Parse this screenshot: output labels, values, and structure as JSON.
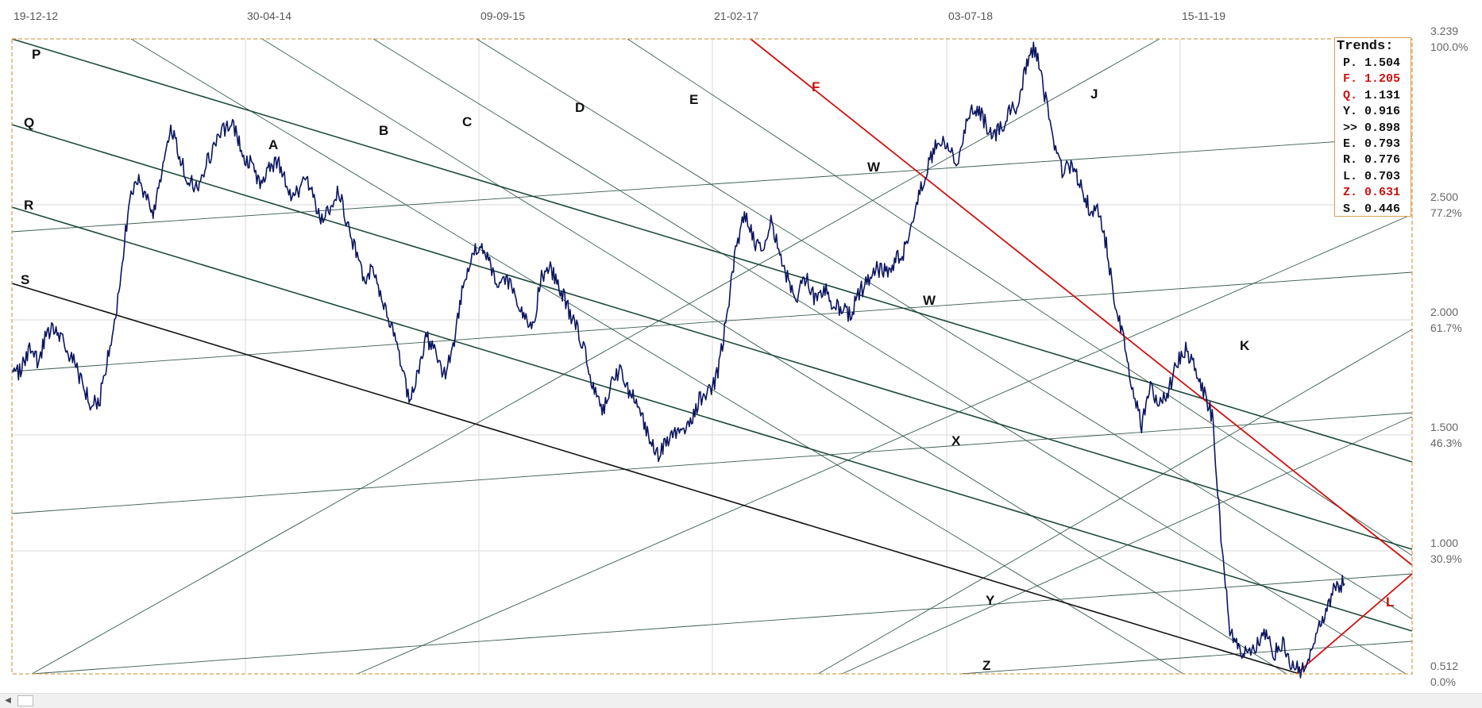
{
  "chart_data": {
    "type": "line",
    "title": "",
    "x_dates": [
      "19-12-12",
      "30-04-14",
      "09-09-15",
      "21-02-17",
      "03-07-18",
      "15-11-19"
    ],
    "price_levels": [
      {
        "price": "3.239",
        "percent": "100.0%"
      },
      {
        "price": "2.500",
        "percent": "77.2%"
      },
      {
        "price": "2.000",
        "percent": "61.7%"
      },
      {
        "price": "1.500",
        "percent": "46.3%"
      },
      {
        "price": "1.000",
        "percent": "30.9%"
      },
      {
        "price": "0.512",
        "percent": "0.0%"
      }
    ],
    "ylim": [
      0.512,
      3.239
    ],
    "grid": true,
    "price_series": {
      "color": "#0b1660",
      "values": [
        1.78,
        1.82,
        1.9,
        1.85,
        1.98,
        2.0,
        1.92,
        1.86,
        1.75,
        1.66,
        1.7,
        1.9,
        2.12,
        2.45,
        2.65,
        2.58,
        2.5,
        2.66,
        2.88,
        2.72,
        2.64,
        2.6,
        2.7,
        2.78,
        2.85,
        2.88,
        2.76,
        2.7,
        2.62,
        2.68,
        2.72,
        2.62,
        2.55,
        2.64,
        2.58,
        2.45,
        2.52,
        2.6,
        2.45,
        2.32,
        2.2,
        2.26,
        2.1,
        2.0,
        1.85,
        1.7,
        1.8,
        1.96,
        1.88,
        1.8,
        1.92,
        2.15,
        2.3,
        2.35,
        2.28,
        2.2,
        2.22,
        2.12,
        2.05,
        2.0,
        2.22,
        2.25,
        2.18,
        2.08,
        2.0,
        1.88,
        1.72,
        1.65,
        1.78,
        1.82,
        1.72,
        1.66,
        1.55,
        1.44,
        1.5,
        1.56,
        1.54,
        1.6,
        1.7,
        1.72,
        1.8,
        2.05,
        2.32,
        2.48,
        2.38,
        2.32,
        2.48,
        2.3,
        2.2,
        2.14,
        2.22,
        2.12,
        2.18,
        2.1,
        2.08,
        2.05,
        2.15,
        2.2,
        2.25,
        2.24,
        2.28,
        2.32,
        2.42,
        2.6,
        2.72,
        2.82,
        2.78,
        2.7,
        2.85,
        2.95,
        2.9,
        2.82,
        2.85,
        2.92,
        2.95,
        3.15,
        3.2,
        3.0,
        2.8,
        2.68,
        2.7,
        2.62,
        2.52,
        2.5,
        2.35,
        2.1,
        1.95,
        1.72,
        1.58,
        1.75,
        1.66,
        1.72,
        1.85,
        1.9,
        1.82,
        1.72,
        1.62,
        1.1,
        0.7,
        0.62,
        0.6,
        0.63,
        0.68,
        0.6,
        0.64,
        0.55,
        0.52,
        0.6,
        0.72,
        0.78,
        0.9,
        0.9
      ]
    },
    "trend_lines": [
      {
        "name": "P",
        "color": "#1e4a3c",
        "start": {
          "date": "19-12-12",
          "price": 3.239
        },
        "end": {
          "date": "15-11-19",
          "price": 1.56
        }
      },
      {
        "name": "Q",
        "color": "#1e4a3c",
        "start": {
          "date": "19-12-12",
          "price": 2.89
        },
        "end": {
          "date": "15-11-19",
          "price": 1.04
        }
      },
      {
        "name": "R",
        "color": "#1e4a3c",
        "start": {
          "date": "19-12-12",
          "price": 2.54
        },
        "end": {
          "date": "15-11-19",
          "price": 0.72
        }
      },
      {
        "name": "S",
        "color": "#111111",
        "start": {
          "date": "19-12-12",
          "price": 2.22
        },
        "end": {
          "date": "15-11-19",
          "price": 0.55
        }
      },
      {
        "name": "F",
        "color": "#cc1111",
        "start": {
          "date": "21-02-17",
          "price": 3.239
        },
        "end": {
          "date": "15-11-19",
          "price": 1.0
        }
      },
      {
        "name": "L",
        "color": "#cc1111",
        "start": {
          "date": "15-11-19",
          "price": 0.54
        },
        "end": {
          "date": "15-11-19",
          "price": 0.92
        }
      }
    ],
    "trend_labels": [
      {
        "label": "P",
        "color": "#111111"
      },
      {
        "label": "Q",
        "color": "#111111"
      },
      {
        "label": "R",
        "color": "#111111"
      },
      {
        "label": "S",
        "color": "#111111"
      },
      {
        "label": "A",
        "color": "#111111"
      },
      {
        "label": "B",
        "color": "#111111"
      },
      {
        "label": "C",
        "color": "#111111"
      },
      {
        "label": "D",
        "color": "#111111"
      },
      {
        "label": "E",
        "color": "#111111"
      },
      {
        "label": "F",
        "color": "#cc1111"
      },
      {
        "label": "W",
        "color": "#111111"
      },
      {
        "label": "W",
        "color": "#111111"
      },
      {
        "label": "J",
        "color": "#111111"
      },
      {
        "label": "K",
        "color": "#111111"
      },
      {
        "label": "X",
        "color": "#111111"
      },
      {
        "label": "Y",
        "color": "#111111"
      },
      {
        "label": "Z",
        "color": "#111111"
      },
      {
        "label": "L",
        "color": "#cc1111"
      }
    ]
  },
  "legend": {
    "title": "Trends:",
    "rows": [
      {
        "key": "P.",
        "value": "1.504",
        "key_color": "#111111",
        "value_color": "#111111"
      },
      {
        "key": "F.",
        "value": "1.205",
        "key_color": "#cc1111",
        "value_color": "#cc1111"
      },
      {
        "key": "Q.",
        "value": "1.131",
        "key_color": "#cc1111",
        "value_color": "#111111"
      },
      {
        "key": "Y.",
        "value": "0.916",
        "key_color": "#111111",
        "value_color": "#111111"
      },
      {
        "key": ">>",
        "value": "0.898",
        "key_color": "#111111",
        "value_color": "#111111"
      },
      {
        "key": "E.",
        "value": "0.793",
        "key_color": "#111111",
        "value_color": "#111111"
      },
      {
        "key": "R.",
        "value": "0.776",
        "key_color": "#111111",
        "value_color": "#111111"
      },
      {
        "key": "L.",
        "value": "0.703",
        "key_color": "#111111",
        "value_color": "#111111"
      },
      {
        "key": "Z.",
        "value": "0.631",
        "key_color": "#cc1111",
        "value_color": "#cc1111"
      },
      {
        "key": "S.",
        "value": "0.446",
        "key_color": "#111111",
        "value_color": "#111111"
      }
    ]
  },
  "colors": {
    "frame": "#d7a055",
    "grid": "#dadada",
    "price_line": "#0b1660",
    "channel": "#1e4a3c",
    "accent_red": "#cc1111"
  },
  "scrollbar": {
    "left_arrow_icon": "chevron-left-icon",
    "left_arrow_glyph": "◀"
  }
}
